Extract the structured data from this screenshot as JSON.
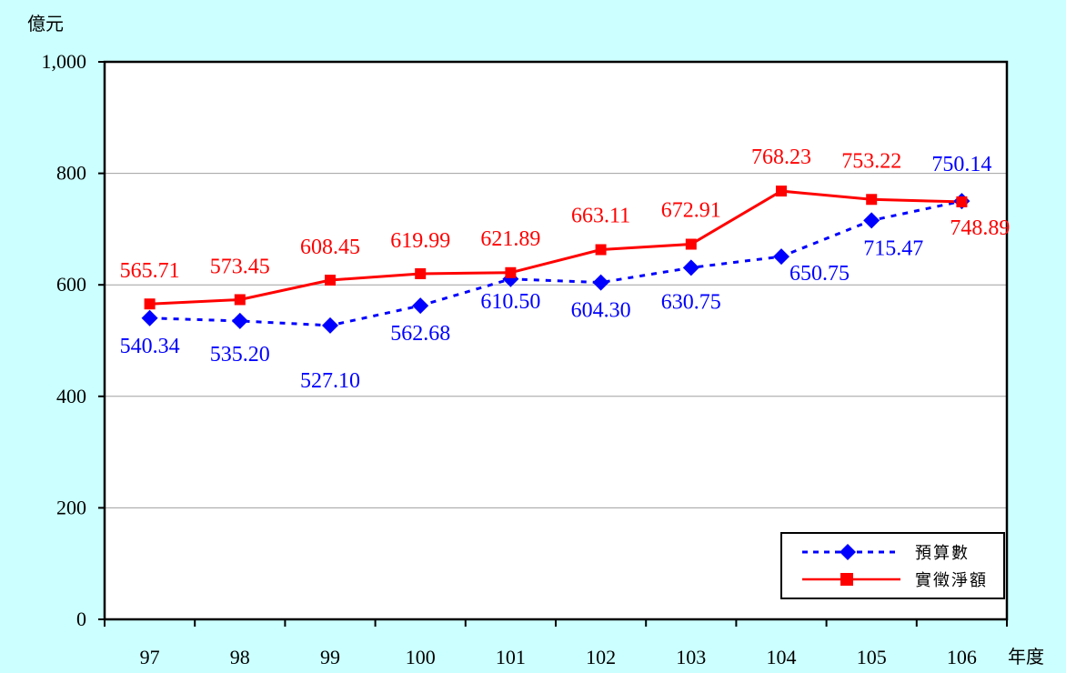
{
  "chart_data": {
    "type": "line",
    "title": "",
    "ylabel": "億元",
    "xlabel": "年度",
    "ylim": [
      0,
      1000
    ],
    "y_ticks": [
      0,
      200,
      400,
      600,
      800,
      1000
    ],
    "y_tick_labels": [
      "0",
      "200",
      "400",
      "600",
      "800",
      "1,000"
    ],
    "categories": [
      "97",
      "98",
      "99",
      "100",
      "101",
      "102",
      "103",
      "104",
      "105",
      "106"
    ],
    "grid": true,
    "legend_position": "bottom-right",
    "series": [
      {
        "name": "預算數",
        "color": "#0000ff",
        "line_style": "dashed",
        "marker": "diamond",
        "values": [
          540.34,
          535.2,
          527.1,
          562.68,
          610.5,
          604.3,
          630.75,
          650.75,
          715.47,
          750.14
        ],
        "labels": [
          "540.34",
          "535.20",
          "527.10",
          "562.68",
          "610.50",
          "604.30",
          "630.75",
          "650.75",
          "715.47",
          "750.14"
        ]
      },
      {
        "name": "實徵淨額",
        "color": "#ff0000",
        "line_style": "solid",
        "marker": "square",
        "values": [
          565.71,
          573.45,
          608.45,
          619.99,
          621.89,
          663.11,
          672.91,
          768.23,
          753.22,
          748.89
        ],
        "labels": [
          "565.71",
          "573.45",
          "608.45",
          "619.99",
          "621.89",
          "663.11",
          "672.91",
          "768.23",
          "753.22",
          "748.89"
        ]
      }
    ]
  }
}
